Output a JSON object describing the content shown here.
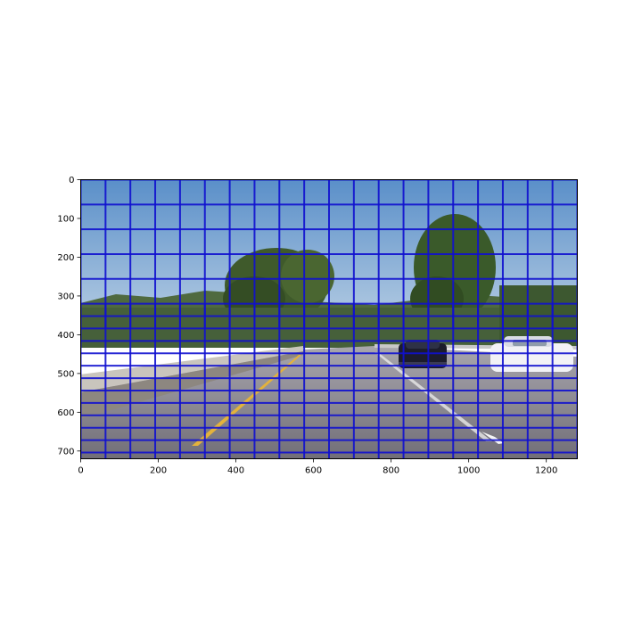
{
  "plot": {
    "image_extent": {
      "x": [
        0,
        1280
      ],
      "y": [
        0,
        720
      ]
    },
    "x_ticks": [
      {
        "value": 0,
        "label": "0"
      },
      {
        "value": 200,
        "label": "200"
      },
      {
        "value": 400,
        "label": "400"
      },
      {
        "value": 600,
        "label": "600"
      },
      {
        "value": 800,
        "label": "800"
      },
      {
        "value": 1000,
        "label": "1000"
      },
      {
        "value": 1200,
        "label": "1200"
      }
    ],
    "y_ticks": [
      {
        "value": 0,
        "label": "0"
      },
      {
        "value": 100,
        "label": "100"
      },
      {
        "value": 200,
        "label": "200"
      },
      {
        "value": 300,
        "label": "300"
      },
      {
        "value": 400,
        "label": "400"
      },
      {
        "value": 500,
        "label": "500"
      },
      {
        "value": 600,
        "label": "600"
      },
      {
        "value": 700,
        "label": "700"
      }
    ],
    "window_grid": {
      "window_size": 64,
      "overlap": 0.5,
      "bands": [
        {
          "y_range": [
            0,
            384
          ],
          "columns": [
            0,
            64,
            128,
            192,
            256,
            320,
            384,
            448,
            512,
            576,
            640,
            704,
            768,
            832,
            896,
            960,
            1024,
            1088,
            1152,
            1216,
            1280
          ]
        },
        {
          "y_range": [
            320,
            720
          ],
          "columns": [
            0,
            64,
            128,
            192,
            256,
            320,
            384,
            448,
            512,
            576,
            640,
            704,
            768,
            832,
            896,
            960,
            1024,
            1088,
            1152,
            1216,
            1280
          ]
        }
      ],
      "rows": [
        0,
        64,
        128,
        192,
        256,
        320,
        384,
        448,
        512,
        576,
        640,
        704
      ],
      "offset_rows": [
        32,
        96,
        160,
        224,
        288,
        352,
        416,
        480,
        544,
        608,
        672
      ],
      "color": "#1010d0"
    },
    "scene": {
      "sky_top": "#5b90c8",
      "sky_bottom": "#a9c4df",
      "road": "#8a8790",
      "lane_line": "#e3b23c",
      "cars": [
        {
          "name": "dark-car",
          "x": [
            820,
            950
          ],
          "y": [
            410,
            490
          ],
          "color": "#1d1d2e"
        },
        {
          "name": "white-car",
          "x": [
            1045,
            1200
          ],
          "y": [
            400,
            500
          ],
          "color": "#f0f0f4"
        }
      ]
    }
  }
}
